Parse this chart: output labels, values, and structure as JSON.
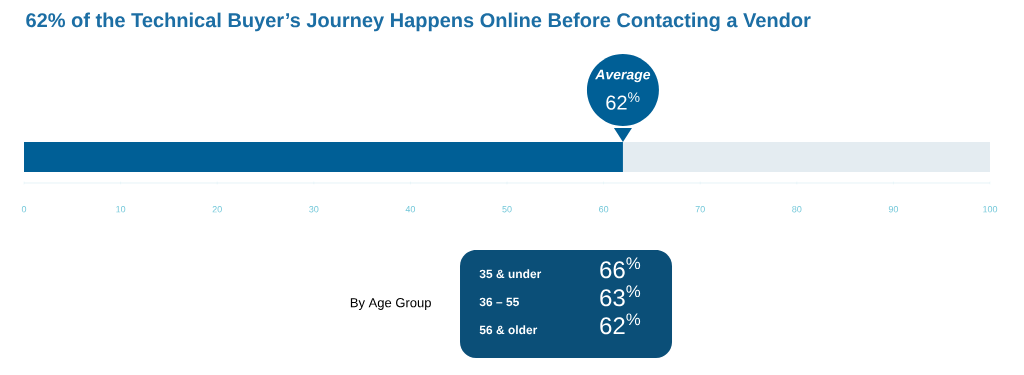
{
  "chart_data": [
    {
      "type": "bar",
      "orientation": "horizontal",
      "title": "62% of the Technical Buyer’s Journey Happens Online Before Contacting a Vendor",
      "categories": [
        null
      ],
      "values": [
        62
      ],
      "color": "#005f96",
      "xlim": [
        0,
        100
      ],
      "xticks": [
        0,
        10,
        20,
        30,
        40,
        50,
        60,
        70,
        80,
        90,
        100
      ],
      "bands": [
        {
          "axis": "x",
          "from": 62,
          "to": 100,
          "color": "#e4ecf1"
        }
      ],
      "annotations": [
        "Average",
        "62$^{%}$"
      ]
    },
    {
      "type": "other",
      "title": "By Age Group",
      "color": "#0b4f78",
      "categories": [
        "35 & under",
        "36 – 55",
        "56 & older"
      ],
      "value_labels": [
        "66$^{%}$",
        "63$^{%}$",
        "62$^{%}$"
      ]
    }
  ]
}
